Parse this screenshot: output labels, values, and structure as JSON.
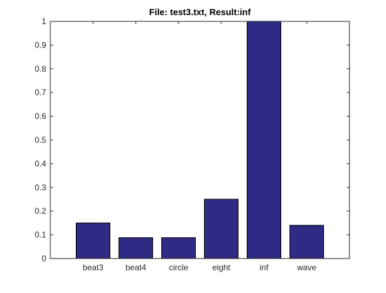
{
  "chart_data": {
    "type": "bar",
    "title": "File: test3.txt, Result:inf",
    "xlabel": "",
    "ylabel": "",
    "categories": [
      "beat3",
      "beat4",
      "circle",
      "eight",
      "inf",
      "wave"
    ],
    "values": [
      0.15,
      0.088,
      0.088,
      0.25,
      1.0,
      0.14
    ],
    "ylim": [
      0,
      1
    ],
    "yticks": [
      "0",
      "0.1",
      "0.2",
      "0.3",
      "0.4",
      "0.5",
      "0.6",
      "0.7",
      "0.8",
      "0.9",
      "1"
    ],
    "grid": false,
    "legend": "none",
    "bar_color": "#2f2a83",
    "bar_edge_color": "#000000"
  }
}
